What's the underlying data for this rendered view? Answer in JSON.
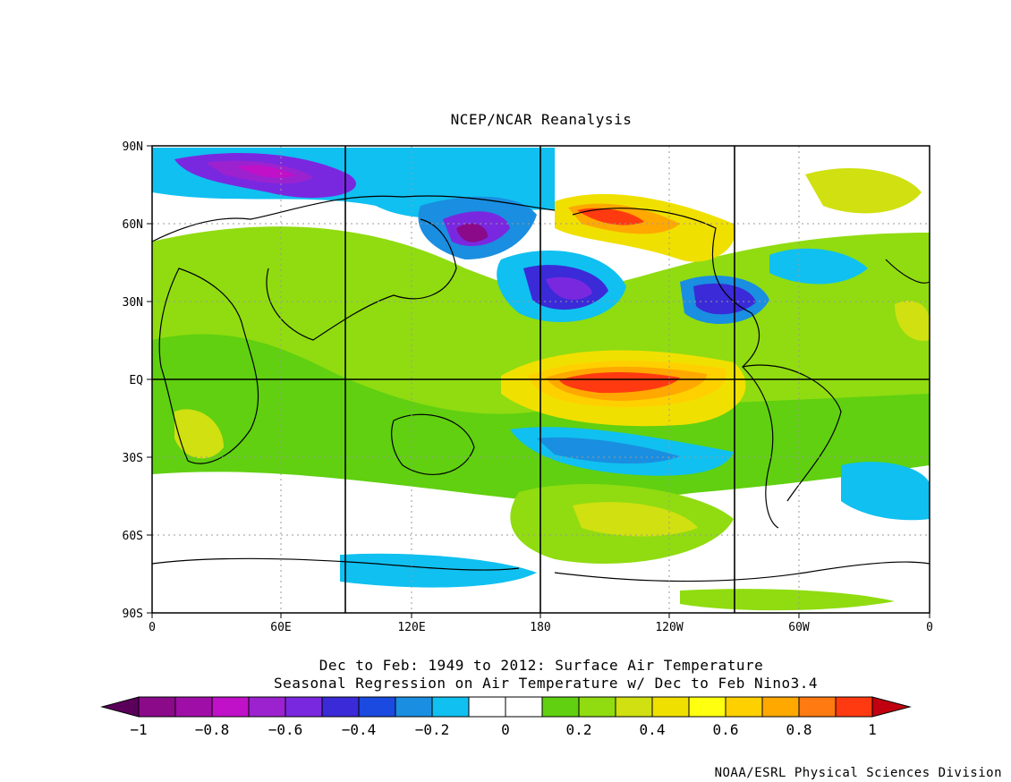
{
  "header": {
    "title": "NCEP/NCAR Reanalysis"
  },
  "map": {
    "lat_labels": [
      "90N",
      "60N",
      "30N",
      "EQ",
      "30S",
      "60S",
      "90S"
    ],
    "lon_labels": [
      "0",
      "60E",
      "120E",
      "180",
      "120W",
      "60W",
      "0"
    ]
  },
  "caption": {
    "line1": "Dec to Feb: 1949 to 2012: Surface Air Temperature",
    "line2": "Seasonal Regression on Air Temperature  w/ Dec to Feb Nino3.4"
  },
  "colorbar": {
    "tick_labels": [
      "−1",
      "−0.8",
      "−0.6",
      "−0.4",
      "−0.2",
      "0",
      "0.2",
      "0.4",
      "0.6",
      "0.8",
      "1"
    ],
    "colors": [
      "#8a0a8a",
      "#a00ea8",
      "#c010c8",
      "#9c22d0",
      "#7a28e0",
      "#3a2ad8",
      "#1a4ae0",
      "#1a8ee0",
      "#10c0f0",
      "#ffffff",
      "#ffffff",
      "#60d010",
      "#90dc10",
      "#d0e010",
      "#f0e000",
      "#ffff10",
      "#ffd000",
      "#ffa800",
      "#ff7a10",
      "#ff3a10"
    ],
    "low_extend_color": "#5a005a",
    "high_extend_color": "#c00010"
  },
  "footer": {
    "credit": "NOAA/ESRL Physical Sciences Division"
  }
}
